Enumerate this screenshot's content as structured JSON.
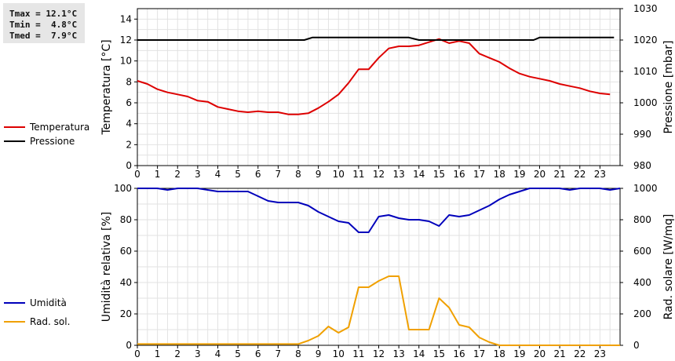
{
  "stats": {
    "lines": [
      "Tmax = 12.1°C",
      "Tmin =  4.8°C",
      "Tmed =  7.9°C"
    ]
  },
  "chart_data": [
    {
      "type": "line",
      "xlim": [
        0,
        24
      ],
      "x_ticks": [
        0,
        1,
        2,
        3,
        4,
        5,
        6,
        7,
        8,
        9,
        10,
        11,
        12,
        13,
        14,
        15,
        16,
        17,
        18,
        19,
        20,
        21,
        22,
        23
      ],
      "ylabel": "Temperatura [°C]",
      "ylim": [
        0,
        15
      ],
      "y_ticks": [
        0,
        2,
        4,
        6,
        8,
        10,
        12,
        14
      ],
      "y2label": "Pressione [mbar]",
      "y2lim": [
        980,
        1030
      ],
      "y2_ticks": [
        980,
        990,
        1000,
        1010,
        1020,
        1030
      ],
      "grid": true,
      "legend": "left",
      "series": [
        {
          "name": "Temperatura",
          "axis": "left",
          "color": "#dd0000",
          "points": [
            [
              0,
              8.1
            ],
            [
              0.5,
              7.8
            ],
            [
              1,
              7.3
            ],
            [
              1.5,
              7.0
            ],
            [
              2,
              6.8
            ],
            [
              2.5,
              6.6
            ],
            [
              3,
              6.2
            ],
            [
              3.5,
              6.1
            ],
            [
              4,
              5.6
            ],
            [
              4.5,
              5.4
            ],
            [
              5,
              5.2
            ],
            [
              5.5,
              5.1
            ],
            [
              6,
              5.2
            ],
            [
              6.5,
              5.1
            ],
            [
              7,
              5.1
            ],
            [
              7.5,
              4.9
            ],
            [
              8,
              4.9
            ],
            [
              8.5,
              5.0
            ],
            [
              9,
              5.5
            ],
            [
              9.5,
              6.1
            ],
            [
              10,
              6.8
            ],
            [
              10.5,
              7.9
            ],
            [
              11,
              9.2
            ],
            [
              11.5,
              9.2
            ],
            [
              12,
              10.3
            ],
            [
              12.5,
              11.2
            ],
            [
              13,
              11.4
            ],
            [
              13.5,
              11.4
            ],
            [
              14,
              11.5
            ],
            [
              14.5,
              11.8
            ],
            [
              15,
              12.1
            ],
            [
              15.5,
              11.7
            ],
            [
              16,
              11.9
            ],
            [
              16.5,
              11.7
            ],
            [
              17,
              10.7
            ],
            [
              17.5,
              10.3
            ],
            [
              18,
              9.9
            ],
            [
              18.5,
              9.3
            ],
            [
              19,
              8.8
            ],
            [
              19.5,
              8.5
            ],
            [
              20,
              8.3
            ],
            [
              20.5,
              8.1
            ],
            [
              21,
              7.8
            ],
            [
              21.5,
              7.6
            ],
            [
              22,
              7.4
            ],
            [
              22.5,
              7.1
            ],
            [
              23,
              6.9
            ],
            [
              23.5,
              6.8
            ]
          ]
        },
        {
          "name": "Pressione",
          "axis": "right",
          "color": "#000000",
          "points": [
            [
              0,
              1020
            ],
            [
              8.3,
              1020
            ],
            [
              8.7,
              1020.8
            ],
            [
              13.5,
              1020.8
            ],
            [
              14,
              1020
            ],
            [
              19.7,
              1020
            ],
            [
              20,
              1020.8
            ],
            [
              23.7,
              1020.8
            ]
          ]
        }
      ]
    },
    {
      "type": "line",
      "xlim": [
        0,
        24
      ],
      "x_ticks": [
        0,
        1,
        2,
        3,
        4,
        5,
        6,
        7,
        8,
        9,
        10,
        11,
        12,
        13,
        14,
        15,
        16,
        17,
        18,
        19,
        20,
        21,
        22,
        23
      ],
      "ylabel": "Umidità relativa [%]",
      "ylim": [
        0,
        100
      ],
      "y_ticks": [
        0,
        20,
        40,
        60,
        80,
        100
      ],
      "y2label": "Rad. solare [W/mq]",
      "y2lim": [
        0,
        1000
      ],
      "y2_ticks": [
        0,
        200,
        400,
        600,
        800,
        1000
      ],
      "grid": true,
      "legend": "left",
      "series": [
        {
          "name": "Umidità",
          "axis": "left",
          "color": "#0000bb",
          "points": [
            [
              0,
              100
            ],
            [
              1,
              100
            ],
            [
              1.5,
              99
            ],
            [
              2,
              100
            ],
            [
              3,
              100
            ],
            [
              4,
              98
            ],
            [
              5,
              98
            ],
            [
              5.5,
              98
            ],
            [
              6,
              95
            ],
            [
              6.5,
              92
            ],
            [
              7,
              91
            ],
            [
              8,
              91
            ],
            [
              8.5,
              89
            ],
            [
              9,
              85
            ],
            [
              9.5,
              82
            ],
            [
              10,
              79
            ],
            [
              10.5,
              78
            ],
            [
              11,
              72
            ],
            [
              11.5,
              72
            ],
            [
              12,
              82
            ],
            [
              12.5,
              83
            ],
            [
              13,
              81
            ],
            [
              13.5,
              80
            ],
            [
              14,
              80
            ],
            [
              14.5,
              79
            ],
            [
              15,
              76
            ],
            [
              15.5,
              83
            ],
            [
              16,
              82
            ],
            [
              16.5,
              83
            ],
            [
              17,
              86
            ],
            [
              17.5,
              89
            ],
            [
              18,
              93
            ],
            [
              18.5,
              96
            ],
            [
              19,
              98
            ],
            [
              19.5,
              100
            ],
            [
              20,
              100
            ],
            [
              21,
              100
            ],
            [
              21.5,
              99
            ],
            [
              22,
              100
            ],
            [
              23,
              100
            ],
            [
              23.5,
              99
            ],
            [
              24,
              100
            ]
          ]
        },
        {
          "name": "Rad. sol.",
          "axis": "right",
          "color": "#f0a000",
          "points": [
            [
              0,
              8
            ],
            [
              8,
              8
            ],
            [
              8.5,
              30
            ],
            [
              9,
              60
            ],
            [
              9.5,
              120
            ],
            [
              10,
              80
            ],
            [
              10.5,
              115
            ],
            [
              11,
              370
            ],
            [
              11.5,
              370
            ],
            [
              12,
              410
            ],
            [
              12.5,
              440
            ],
            [
              13,
              440
            ],
            [
              13.5,
              100
            ],
            [
              14,
              100
            ],
            [
              14.5,
              100
            ],
            [
              15,
              300
            ],
            [
              15.5,
              240
            ],
            [
              16,
              130
            ],
            [
              16.5,
              115
            ],
            [
              17,
              50
            ],
            [
              17.5,
              20
            ],
            [
              18,
              0
            ],
            [
              24,
              0
            ]
          ]
        }
      ]
    }
  ]
}
